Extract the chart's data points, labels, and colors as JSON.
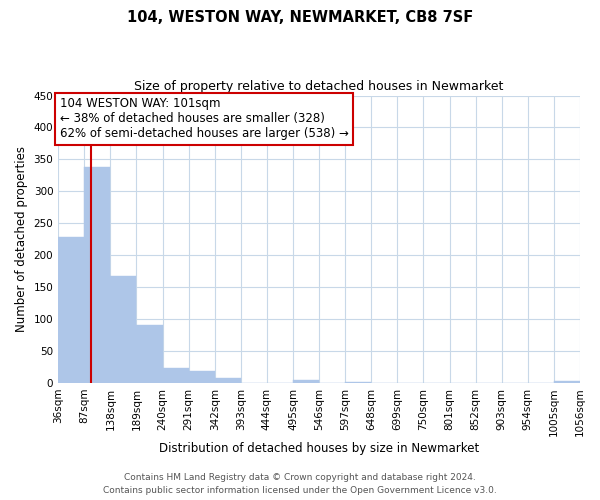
{
  "title": "104, WESTON WAY, NEWMARKET, CB8 7SF",
  "subtitle": "Size of property relative to detached houses in Newmarket",
  "xlabel": "Distribution of detached houses by size in Newmarket",
  "ylabel": "Number of detached properties",
  "bar_left_edges": [
    36,
    87,
    138,
    189,
    240,
    291,
    342,
    393,
    444,
    495,
    546,
    597,
    648,
    699,
    750,
    801,
    852,
    903,
    954,
    1005
  ],
  "bar_heights": [
    228,
    338,
    168,
    90,
    23,
    18,
    7,
    0,
    0,
    4,
    0,
    2,
    0,
    0,
    0,
    0,
    0,
    0,
    0,
    3
  ],
  "bin_width": 51,
  "bar_color": "#aec6e8",
  "bar_edgecolor": "#aec6e8",
  "vline_x": 101,
  "vline_color": "#cc0000",
  "ylim": [
    0,
    450
  ],
  "yticks": [
    0,
    50,
    100,
    150,
    200,
    250,
    300,
    350,
    400,
    450
  ],
  "xtick_labels": [
    "36sqm",
    "87sqm",
    "138sqm",
    "189sqm",
    "240sqm",
    "291sqm",
    "342sqm",
    "393sqm",
    "444sqm",
    "495sqm",
    "546sqm",
    "597sqm",
    "648sqm",
    "699sqm",
    "750sqm",
    "801sqm",
    "852sqm",
    "903sqm",
    "954sqm",
    "1005sqm",
    "1056sqm"
  ],
  "annotation_text": "104 WESTON WAY: 101sqm\n← 38% of detached houses are smaller (328)\n62% of semi-detached houses are larger (538) →",
  "annotation_box_color": "#ffffff",
  "annotation_box_edgecolor": "#cc0000",
  "footer_line1": "Contains HM Land Registry data © Crown copyright and database right 2024.",
  "footer_line2": "Contains public sector information licensed under the Open Government Licence v3.0.",
  "background_color": "#ffffff",
  "grid_color": "#c8d8e8",
  "title_fontsize": 10.5,
  "subtitle_fontsize": 9,
  "axis_label_fontsize": 8.5,
  "tick_fontsize": 7.5,
  "annotation_fontsize": 8.5,
  "footer_fontsize": 6.5
}
